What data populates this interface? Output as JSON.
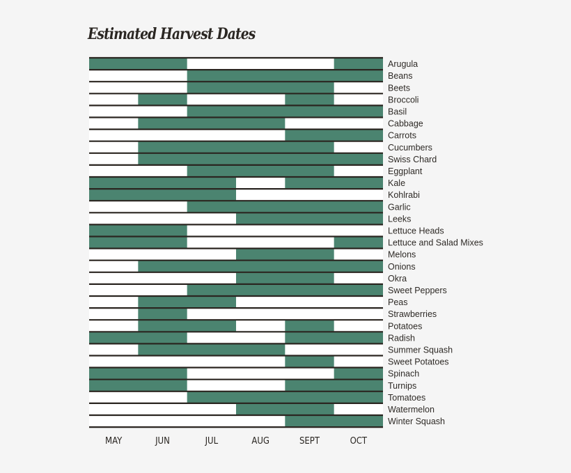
{
  "chart_data": {
    "type": "gantt",
    "title": "Estimated Harvest Dates",
    "months": [
      "MAY",
      "JUN",
      "JUL",
      "AUG",
      "SEPT",
      "OCT"
    ],
    "half_months": 12,
    "colors": {
      "harvest": "#4b8470",
      "empty": "#ffffff",
      "grid": "#2b2621"
    },
    "crops": [
      {
        "name": "Arugula",
        "harvest": [
          [
            0,
            4
          ],
          [
            10,
            12
          ]
        ]
      },
      {
        "name": "Beans",
        "harvest": [
          [
            4,
            12
          ]
        ]
      },
      {
        "name": "Beets",
        "harvest": [
          [
            4,
            10
          ]
        ]
      },
      {
        "name": "Broccoli",
        "harvest": [
          [
            2,
            4
          ],
          [
            8,
            10
          ]
        ]
      },
      {
        "name": "Basil",
        "harvest": [
          [
            4,
            12
          ]
        ]
      },
      {
        "name": "Cabbage",
        "harvest": [
          [
            2,
            8
          ]
        ]
      },
      {
        "name": "Carrots",
        "harvest": [
          [
            8,
            12
          ]
        ]
      },
      {
        "name": "Cucumbers",
        "harvest": [
          [
            2,
            10
          ]
        ]
      },
      {
        "name": "Swiss Chard",
        "harvest": [
          [
            2,
            12
          ]
        ]
      },
      {
        "name": "Eggplant",
        "harvest": [
          [
            4,
            10
          ]
        ]
      },
      {
        "name": "Kale",
        "harvest": [
          [
            0,
            6
          ],
          [
            8,
            12
          ]
        ]
      },
      {
        "name": "Kohlrabi",
        "harvest": [
          [
            0,
            6
          ]
        ]
      },
      {
        "name": "Garlic",
        "harvest": [
          [
            4,
            12
          ]
        ]
      },
      {
        "name": "Leeks",
        "harvest": [
          [
            6,
            12
          ]
        ]
      },
      {
        "name": "Lettuce Heads",
        "harvest": [
          [
            0,
            4
          ]
        ]
      },
      {
        "name": "Lettuce and Salad Mixes",
        "harvest": [
          [
            0,
            4
          ],
          [
            10,
            12
          ]
        ]
      },
      {
        "name": "Melons",
        "harvest": [
          [
            6,
            10
          ]
        ]
      },
      {
        "name": "Onions",
        "harvest": [
          [
            2,
            12
          ]
        ]
      },
      {
        "name": "Okra",
        "harvest": [
          [
            6,
            10
          ]
        ]
      },
      {
        "name": "Sweet Peppers",
        "harvest": [
          [
            4,
            12
          ]
        ]
      },
      {
        "name": "Peas",
        "harvest": [
          [
            2,
            6
          ]
        ]
      },
      {
        "name": "Strawberries",
        "harvest": [
          [
            2,
            4
          ]
        ]
      },
      {
        "name": "Potatoes",
        "harvest": [
          [
            2,
            6
          ],
          [
            8,
            10
          ]
        ]
      },
      {
        "name": "Radish",
        "harvest": [
          [
            0,
            4
          ],
          [
            8,
            12
          ]
        ]
      },
      {
        "name": "Summer Squash",
        "harvest": [
          [
            2,
            8
          ]
        ]
      },
      {
        "name": "Sweet Potatoes",
        "harvest": [
          [
            8,
            10
          ]
        ]
      },
      {
        "name": "Spinach",
        "harvest": [
          [
            0,
            4
          ],
          [
            10,
            12
          ]
        ]
      },
      {
        "name": "Turnips",
        "harvest": [
          [
            0,
            4
          ],
          [
            8,
            12
          ]
        ]
      },
      {
        "name": "Tomatoes",
        "harvest": [
          [
            4,
            12
          ]
        ]
      },
      {
        "name": "Watermelon",
        "harvest": [
          [
            6,
            10
          ]
        ]
      },
      {
        "name": "Winter Squash",
        "harvest": [
          [
            8,
            12
          ]
        ]
      }
    ]
  }
}
